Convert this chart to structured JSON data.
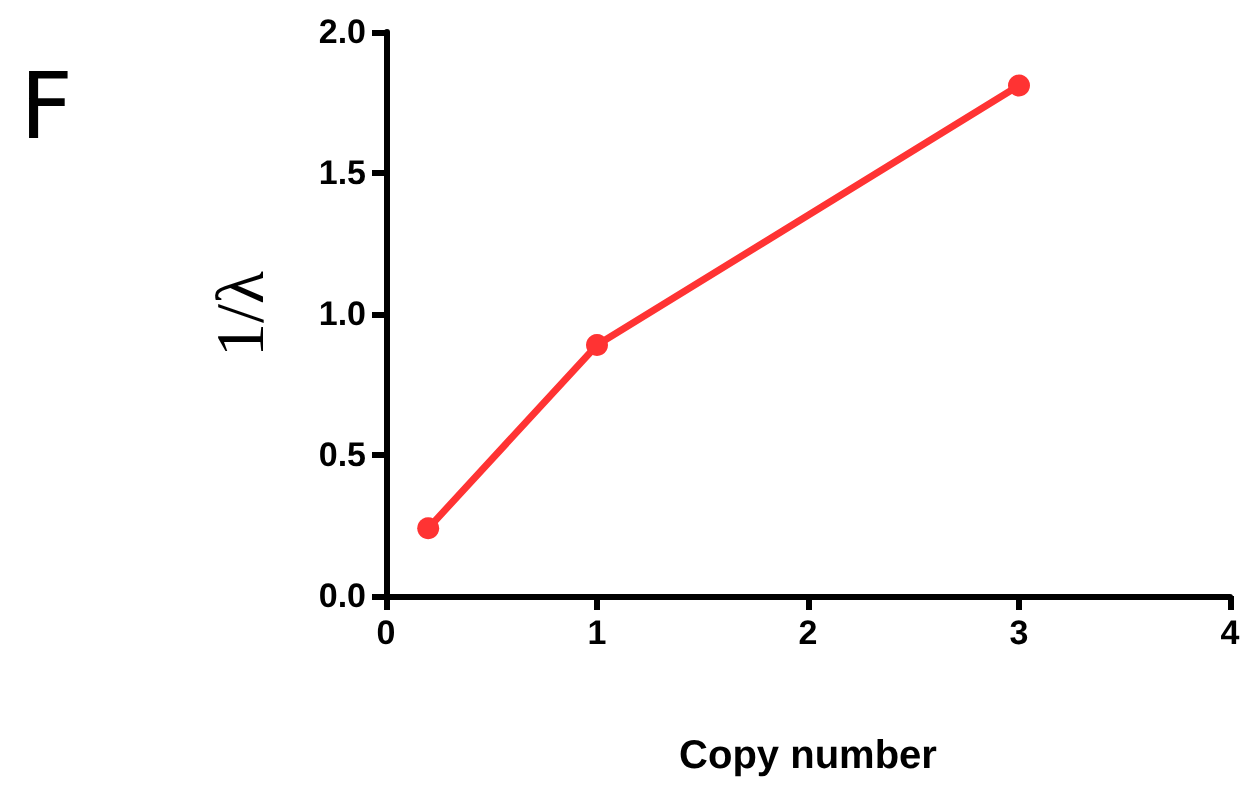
{
  "chart_data": {
    "type": "line",
    "xlabel": "Copy number",
    "ylabel": "1/λ",
    "annotations": [
      "F"
    ],
    "x": [
      0.2,
      1,
      3
    ],
    "series": [
      {
        "color": "#ff3333",
        "values": [
          0.24,
          0.89,
          1.81
        ]
      }
    ],
    "xlim": [
      0,
      4
    ],
    "xticks": [
      0,
      1,
      2,
      3,
      4
    ],
    "ylim": [
      0,
      2
    ],
    "yticks": [
      {
        "value": 0,
        "label": "0.0"
      },
      {
        "value": 0.5,
        "label": "0.5"
      },
      {
        "value": 1,
        "label": "1.0"
      },
      {
        "value": 1.5,
        "label": "1.5"
      },
      {
        "value": 2,
        "label": "2.0"
      }
    ],
    "grid": false,
    "marker": "circle",
    "line_style": "solid"
  }
}
